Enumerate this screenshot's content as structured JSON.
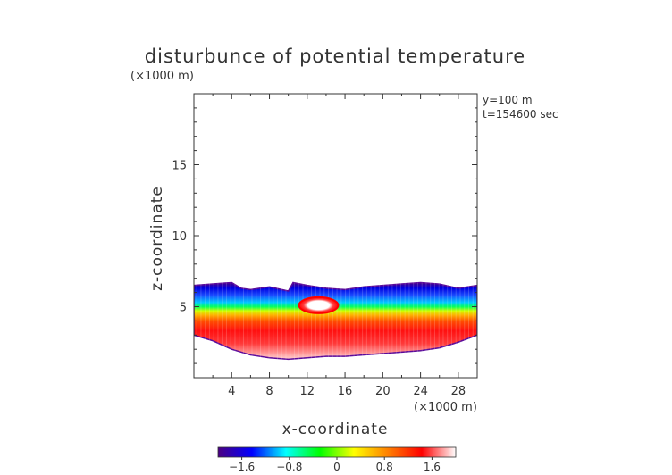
{
  "chart_data": {
    "type": "heatmap",
    "title": "disturbunce of potential temperature",
    "ylabel": "z-coordinate",
    "xlabel": "x-coordinate",
    "y_unit": "(×1000 m)",
    "x_unit": "(×1000 m)",
    "annotations": [
      "y=100 m",
      "t=154600 sec"
    ],
    "xlim": [
      0,
      30
    ],
    "ylim": [
      0,
      20
    ],
    "x_ticks": [
      4,
      8,
      12,
      16,
      20,
      24,
      28
    ],
    "y_ticks": [
      5,
      10,
      15
    ],
    "colorbar": {
      "range": [
        -2.0,
        2.0
      ],
      "ticks": [
        -1.6,
        -0.8,
        0,
        0.8,
        1.6
      ],
      "tick_labels": [
        "−1.6",
        "−0.8",
        "0",
        "0.8",
        "1.6"
      ],
      "colors": [
        "#4b0082",
        "#0000ff",
        "#00ffff",
        "#00ff00",
        "#ffff00",
        "#ff8000",
        "#ff0000",
        "#ffffff"
      ]
    },
    "field": {
      "top_boundary_x": [
        0,
        2,
        4,
        5,
        6,
        8,
        10,
        10.5,
        12,
        14,
        16,
        18,
        20,
        22,
        24,
        26,
        28,
        30
      ],
      "top_boundary_z": [
        6.5,
        6.6,
        6.7,
        6.3,
        6.2,
        6.4,
        6.1,
        6.7,
        6.5,
        6.3,
        6.2,
        6.4,
        6.5,
        6.6,
        6.7,
        6.6,
        6.3,
        6.5
      ],
      "bottom_boundary_x": [
        0,
        2,
        4,
        6,
        8,
        10,
        12,
        14,
        16,
        18,
        20,
        22,
        24,
        26,
        28,
        30
      ],
      "bottom_boundary_z": [
        3.0,
        2.6,
        2.0,
        1.6,
        1.4,
        1.3,
        1.4,
        1.5,
        1.5,
        1.6,
        1.7,
        1.8,
        1.9,
        2.1,
        2.5,
        3.0
      ],
      "warm_bubble": {
        "x": 13.2,
        "z": 5.1,
        "value": 2.0
      }
    }
  }
}
